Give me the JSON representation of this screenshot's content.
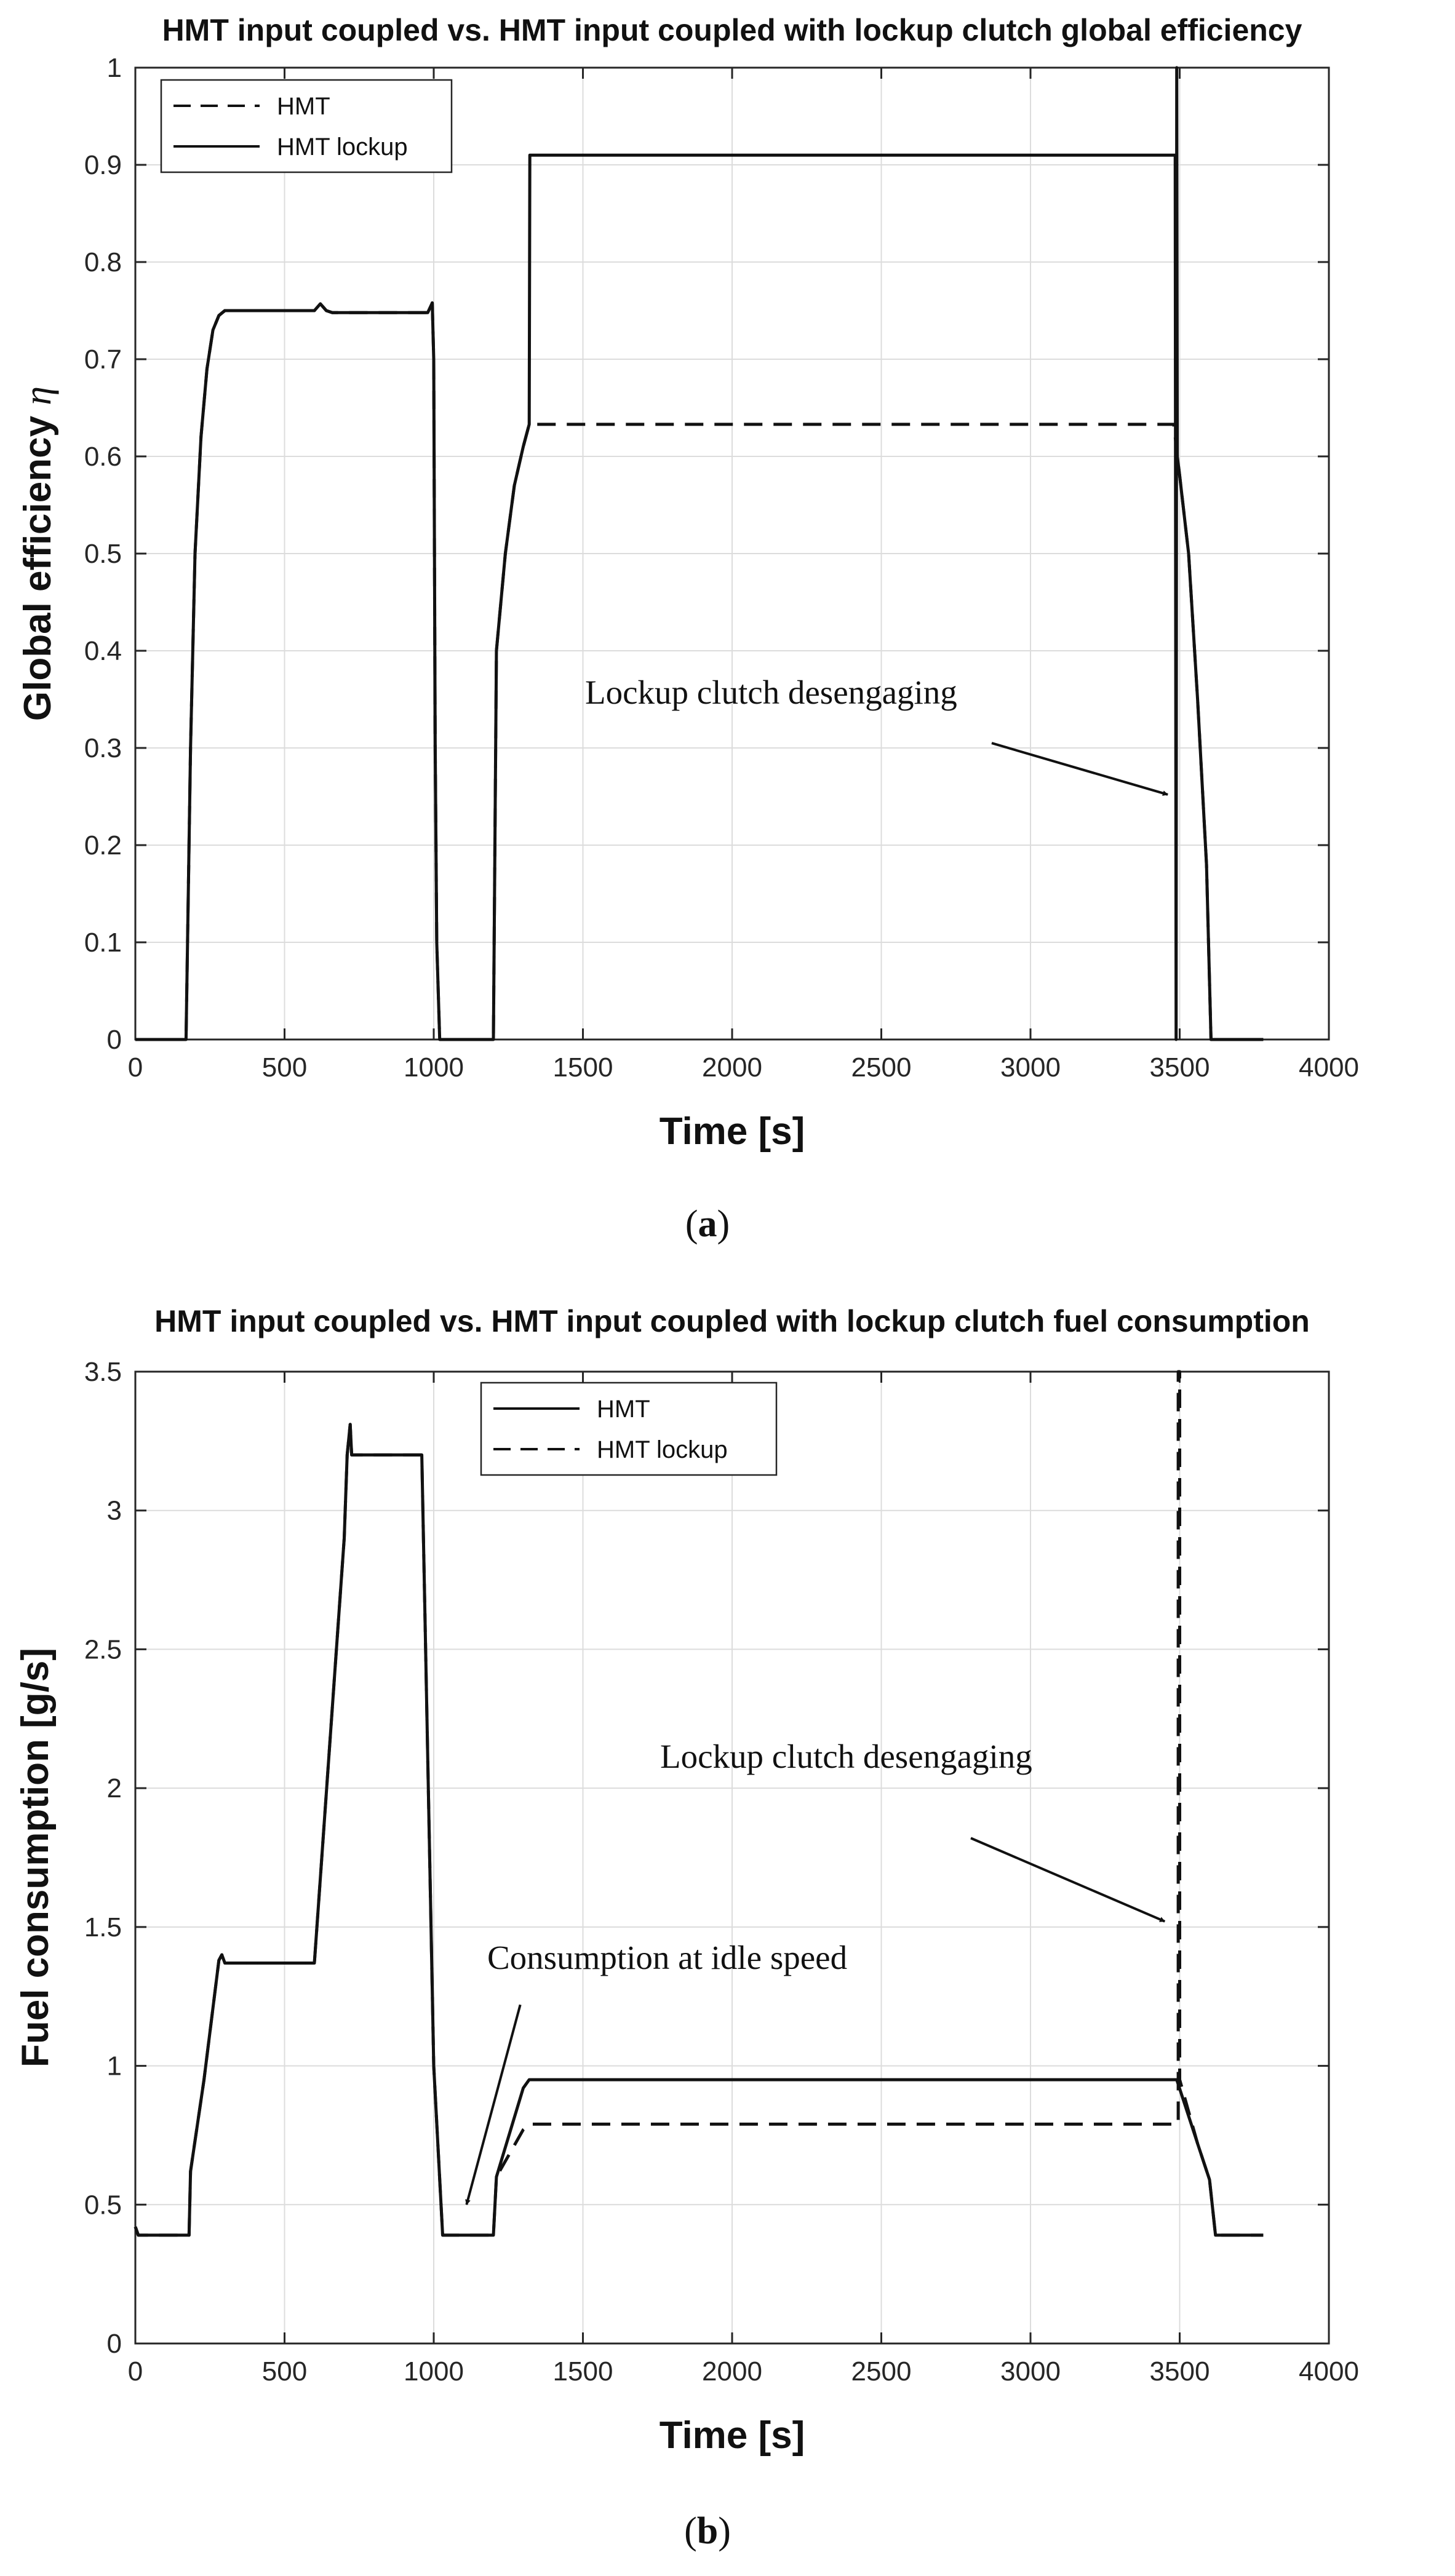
{
  "chart_data": [
    {
      "type": "line",
      "title": "HMT input coupled vs. HMT input coupled with lockup clutch global efficiency",
      "xlabel": "Time [s]",
      "ylabel": "Global efficiency",
      "ylabel_symbol": "η",
      "xlim": [
        0,
        4000
      ],
      "ylim": [
        0,
        1
      ],
      "xticks": [
        "0",
        "500",
        "1000",
        "1500",
        "2000",
        "2500",
        "3000",
        "3500",
        "4000"
      ],
      "xtick_values": [
        0,
        500,
        1000,
        1500,
        2000,
        2500,
        3000,
        3500,
        4000
      ],
      "yticks": [
        "0",
        "0.1",
        "0.2",
        "0.3",
        "0.4",
        "0.5",
        "0.6",
        "0.7",
        "0.8",
        "0.9",
        "1"
      ],
      "ytick_values": [
        0,
        0.1,
        0.2,
        0.3,
        0.4,
        0.5,
        0.6,
        0.7,
        0.8,
        0.9,
        1
      ],
      "grid": true,
      "legend_position": "top-left",
      "legend": [
        {
          "name": "HMT",
          "style": "dashed"
        },
        {
          "name": "HMT lockup",
          "style": "solid"
        }
      ],
      "series": [
        {
          "name": "HMT",
          "style": "dashed",
          "x": [
            0,
            170,
            185,
            200,
            220,
            240,
            260,
            280,
            300,
            600,
            620,
            640,
            660,
            980,
            995,
            1000,
            1005,
            1010,
            1020,
            1200,
            1210,
            1240,
            1270,
            1300,
            1320,
            3480,
            3500,
            3530,
            3560,
            3590,
            3605,
            3780
          ],
          "y": [
            0,
            0,
            0.3,
            0.5,
            0.62,
            0.69,
            0.73,
            0.745,
            0.75,
            0.75,
            0.757,
            0.75,
            0.748,
            0.748,
            0.758,
            0.7,
            0.3,
            0.1,
            0,
            0,
            0.4,
            0.5,
            0.57,
            0.61,
            0.633,
            0.633,
            0.58,
            0.5,
            0.35,
            0.18,
            0,
            0
          ]
        },
        {
          "name": "HMT lockup",
          "style": "solid",
          "x": [
            0,
            170,
            185,
            200,
            220,
            240,
            260,
            280,
            300,
            600,
            620,
            640,
            660,
            980,
            995,
            1000,
            1005,
            1010,
            1020,
            1200,
            1210,
            1240,
            1270,
            1300,
            1320,
            1322,
            3485,
            3488,
            3490,
            3492,
            3500,
            3530,
            3560,
            3590,
            3605,
            3780
          ],
          "y": [
            0,
            0,
            0.3,
            0.5,
            0.62,
            0.69,
            0.73,
            0.745,
            0.75,
            0.75,
            0.757,
            0.75,
            0.748,
            0.748,
            0.758,
            0.7,
            0.3,
            0.1,
            0,
            0,
            0.4,
            0.5,
            0.57,
            0.61,
            0.633,
            0.91,
            0.91,
            0,
            1.0,
            0.6,
            0.58,
            0.5,
            0.35,
            0.18,
            0,
            0
          ]
        }
      ],
      "annotations": [
        {
          "text": "Lockup clutch desengaging",
          "text_x": 1500,
          "text_y": 0.355,
          "arrow_from": [
            2870,
            0.305
          ],
          "arrow_to": [
            3460,
            0.252
          ]
        }
      ],
      "caption_open": "(",
      "caption_letter": "a",
      "caption_close": ")"
    },
    {
      "type": "line",
      "title": "HMT input coupled vs. HMT input coupled with lockup clutch fuel consumption",
      "xlabel": "Time [s]",
      "ylabel": "Fuel consumption [g/s]",
      "xlim": [
        0,
        4000
      ],
      "ylim": [
        0,
        3.5
      ],
      "xticks": [
        "0",
        "500",
        "1000",
        "1500",
        "2000",
        "2500",
        "3000",
        "3500",
        "4000"
      ],
      "xtick_values": [
        0,
        500,
        1000,
        1500,
        2000,
        2500,
        3000,
        3500,
        4000
      ],
      "yticks": [
        "0",
        "0.5",
        "1",
        "1.5",
        "2",
        "2.5",
        "3",
        "3.5"
      ],
      "ytick_values": [
        0,
        0.5,
        1,
        1.5,
        2,
        2.5,
        3,
        3.5
      ],
      "grid": true,
      "legend_position": "top-center",
      "legend": [
        {
          "name": "HMT",
          "style": "solid"
        },
        {
          "name": "HMT lockup",
          "style": "dashed"
        }
      ],
      "series": [
        {
          "name": "HMT",
          "style": "solid",
          "x": [
            0,
            10,
            25,
            180,
            185,
            230,
            280,
            290,
            300,
            600,
            700,
            710,
            720,
            725,
            730,
            960,
            970,
            1000,
            1030,
            1200,
            1210,
            1300,
            1320,
            3490,
            3560,
            3600,
            3620,
            3780
          ],
          "y": [
            0.42,
            0.39,
            0.39,
            0.39,
            0.62,
            0.95,
            1.38,
            1.4,
            1.37,
            1.37,
            2.9,
            3.2,
            3.31,
            3.2,
            3.2,
            3.2,
            2.65,
            1.0,
            0.39,
            0.39,
            0.6,
            0.92,
            0.95,
            0.95,
            0.72,
            0.59,
            0.39,
            0.39
          ]
        },
        {
          "name": "HMT lockup",
          "style": "dashed",
          "x": [
            0,
            10,
            25,
            180,
            185,
            230,
            280,
            290,
            300,
            600,
            700,
            710,
            720,
            725,
            730,
            960,
            970,
            1000,
            1030,
            1200,
            1210,
            1300,
            1320,
            3490,
            3495,
            3495,
            3500,
            3500,
            3560,
            3600,
            3620,
            3780
          ],
          "y": [
            0.42,
            0.39,
            0.39,
            0.39,
            0.62,
            0.95,
            1.38,
            1.4,
            1.37,
            1.37,
            2.9,
            3.2,
            3.31,
            3.2,
            3.2,
            3.2,
            2.65,
            1.0,
            0.39,
            0.39,
            0.6,
            0.77,
            0.79,
            0.79,
            0.79,
            3.5,
            3.5,
            0.95,
            0.72,
            0.59,
            0.39,
            0.39
          ]
        }
      ],
      "annotations": [
        {
          "text": "Lockup clutch desengaging",
          "text_x": 1760,
          "text_y": 2.0,
          "arrow_from": [
            2800,
            1.82
          ],
          "arrow_to": [
            3450,
            1.52
          ]
        },
        {
          "text": "Consumption at idle speed",
          "text_x": 1180,
          "text_y": 1.37,
          "arrow_from": [
            1290,
            1.22
          ],
          "arrow_to": [
            1110,
            0.5
          ]
        }
      ],
      "caption_open": "(",
      "caption_letter": "b",
      "caption_close": ")"
    }
  ]
}
